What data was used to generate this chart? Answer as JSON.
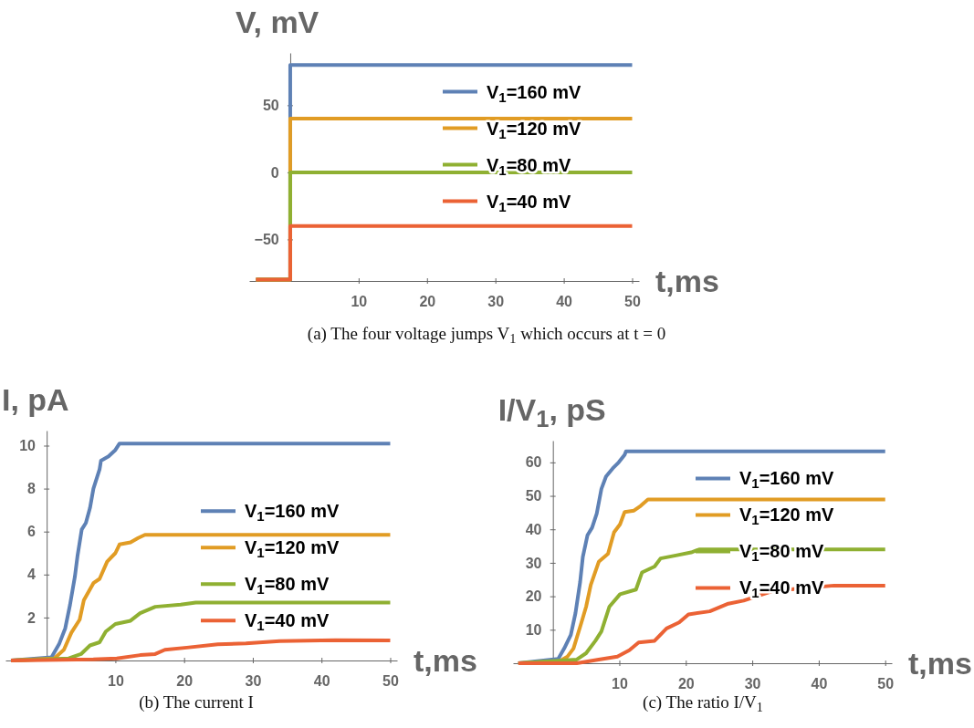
{
  "chart_data": [
    {
      "type": "line",
      "ylabel": "V, mV",
      "xlabel": "t,ms",
      "annotations": [
        "(a)  The four voltage jumps V$_{1}$ which occurs at t = 0"
      ],
      "xlim": [
        -6,
        51
      ],
      "ylim": [
        -81,
        89
      ],
      "xticks": [
        10,
        20,
        30,
        40,
        50
      ],
      "yticks": [
        {
          "value": -50,
          "label": "−50"
        },
        0,
        50
      ],
      "grid": false,
      "legend": "top right",
      "marker": "none",
      "line_style": "solid",
      "series": [
        {
          "name": "V$_{1}$=160 mV",
          "color": "#5e81b5",
          "x": [
            -5,
            0,
            0,
            50
          ],
          "values": [
            -80,
            -80,
            80,
            80
          ]
        },
        {
          "name": "V$_{1}$=120 mV",
          "color": "#e19c24",
          "x": [
            -5,
            0,
            0,
            50
          ],
          "values": [
            -80,
            -80,
            40,
            40
          ]
        },
        {
          "name": "V$_{1}$=80 mV",
          "color": "#8fb032",
          "x": [
            -5,
            0,
            0,
            50
          ],
          "values": [
            -80,
            -80,
            0,
            0
          ]
        },
        {
          "name": "V$_{1}$=40 mV",
          "color": "#eb6235",
          "x": [
            -5,
            0,
            0,
            50
          ],
          "values": [
            -80,
            -80,
            -40,
            -40
          ]
        }
      ]
    },
    {
      "type": "line",
      "ylabel": "I, pA",
      "xlabel": "t,ms",
      "annotations": [
        "(b)  The current I"
      ],
      "xlim": [
        -6,
        51
      ],
      "ylim": [
        0,
        10.7
      ],
      "xticks": [
        10,
        20,
        30,
        40,
        50
      ],
      "yticks": [
        2,
        4,
        6,
        8,
        10
      ],
      "grid": false,
      "legend": "right",
      "marker": "none",
      "line_style": "solid",
      "series": [
        {
          "name": "V$_{1}$=160 mV",
          "color": "#5e81b5",
          "x": [
            -5.2,
            0.7,
            1.8,
            2.7,
            3.4,
            4.1,
            4.5,
            5.1,
            5.7,
            6.3,
            6.8,
            7.7,
            7.9,
            9.0,
            10,
            10.6,
            50
          ],
          "values": [
            0,
            0.15,
            0.76,
            1.5,
            2.6,
            3.9,
            4.9,
            6.1,
            6.4,
            7.1,
            8.0,
            8.9,
            9.3,
            9.5,
            9.8,
            10.1,
            10.1
          ]
        },
        {
          "name": "V$_{1}$=120 mV",
          "color": "#e19c24",
          "x": [
            -5.2,
            1.1,
            2.5,
            3.6,
            4.8,
            5.4,
            6.8,
            7.7,
            8.8,
            10,
            10.6,
            12.2,
            13.3,
            14.3,
            50
          ],
          "values": [
            0,
            0.1,
            0.5,
            1.3,
            1.9,
            2.8,
            3.6,
            3.8,
            4.6,
            5.0,
            5.4,
            5.5,
            5.7,
            5.85,
            5.85
          ]
        },
        {
          "name": "V$_{1}$=80 mV",
          "color": "#8fb032",
          "x": [
            -5.2,
            3.2,
            5,
            6.3,
            7.7,
            8.6,
            10,
            12.2,
            13.6,
            15.8,
            19.5,
            21.7,
            50
          ],
          "values": [
            0,
            0.1,
            0.3,
            0.7,
            0.85,
            1.35,
            1.7,
            1.85,
            2.2,
            2.5,
            2.6,
            2.7,
            2.7
          ]
        },
        {
          "name": "V$_{1}$=40 mV",
          "color": "#eb6235",
          "x": [
            -5.2,
            6.8,
            10.2,
            13.6,
            15.8,
            17.2,
            20.4,
            24.9,
            29,
            33.9,
            42,
            50
          ],
          "values": [
            0,
            0.05,
            0.1,
            0.25,
            0.3,
            0.5,
            0.6,
            0.75,
            0.8,
            0.9,
            0.95,
            0.93
          ]
        }
      ]
    },
    {
      "type": "line",
      "ylabel": "I/V$_{1}$, pS",
      "xlabel": "t,ms",
      "annotations": [
        "(c)  The ratio I/V$_{1}$"
      ],
      "xlim": [
        -6,
        51
      ],
      "ylim": [
        0,
        66.5
      ],
      "xticks": [
        10,
        20,
        30,
        40,
        50
      ],
      "yticks": [
        10,
        20,
        30,
        40,
        50,
        60
      ],
      "grid": false,
      "legend": "top right",
      "marker": "none",
      "line_style": "solid",
      "series": [
        {
          "name": "V$_{1}$=160 mV",
          "color": "#5e81b5",
          "x": [
            -5.2,
            0.8,
            1.7,
            2.7,
            3.4,
            4.1,
            4.5,
            5.2,
            5.9,
            6.6,
            7.3,
            8,
            9,
            9.9,
            10.8,
            11,
            50
          ],
          "values": [
            0,
            1.3,
            4.4,
            8.5,
            15,
            24.3,
            31.7,
            38.2,
            40.5,
            44.7,
            52.1,
            55.8,
            58.2,
            60,
            62.3,
            63.3,
            63.3
          ]
        },
        {
          "name": "V$_{1}$=120 mV",
          "color": "#e19c24",
          "x": [
            -5.2,
            1,
            2.2,
            3.1,
            4.3,
            5,
            5.7,
            6.9,
            8.3,
            9.2,
            10.1,
            10.8,
            12.2,
            13.2,
            14.3,
            50
          ],
          "values": [
            0,
            0.6,
            2,
            4.4,
            12.2,
            16.9,
            23.4,
            30.3,
            32.7,
            39.1,
            41.5,
            45.2,
            45.6,
            47,
            48.9,
            48.9
          ]
        },
        {
          "name": "V$_{1}$=80 mV",
          "color": "#8fb032",
          "x": [
            -5.2,
            3.6,
            5,
            6.4,
            7.3,
            8.5,
            10.1,
            12.5,
            13.4,
            15.3,
            16.2,
            18.5,
            20.8,
            22,
            50
          ],
          "values": [
            0,
            1.1,
            3,
            6.7,
            9.5,
            16.9,
            20.6,
            22,
            27.1,
            28.9,
            31.3,
            32.2,
            33.1,
            34,
            34
          ]
        },
        {
          "name": "V$_{1}$=40 mV",
          "color": "#eb6235",
          "x": [
            -5.2,
            3.6,
            6.9,
            9.7,
            11.5,
            12.9,
            15.3,
            17.1,
            19,
            20.4,
            23.6,
            26.4,
            28.7,
            31.6,
            33,
            37.6,
            42.3,
            50
          ],
          "values": [
            0,
            0,
            1.1,
            2,
            3.9,
            6.2,
            6.7,
            10.4,
            12.2,
            14.6,
            15.5,
            17.8,
            18.7,
            20.6,
            21.5,
            22.4,
            23.2,
            23.2
          ]
        }
      ]
    }
  ]
}
